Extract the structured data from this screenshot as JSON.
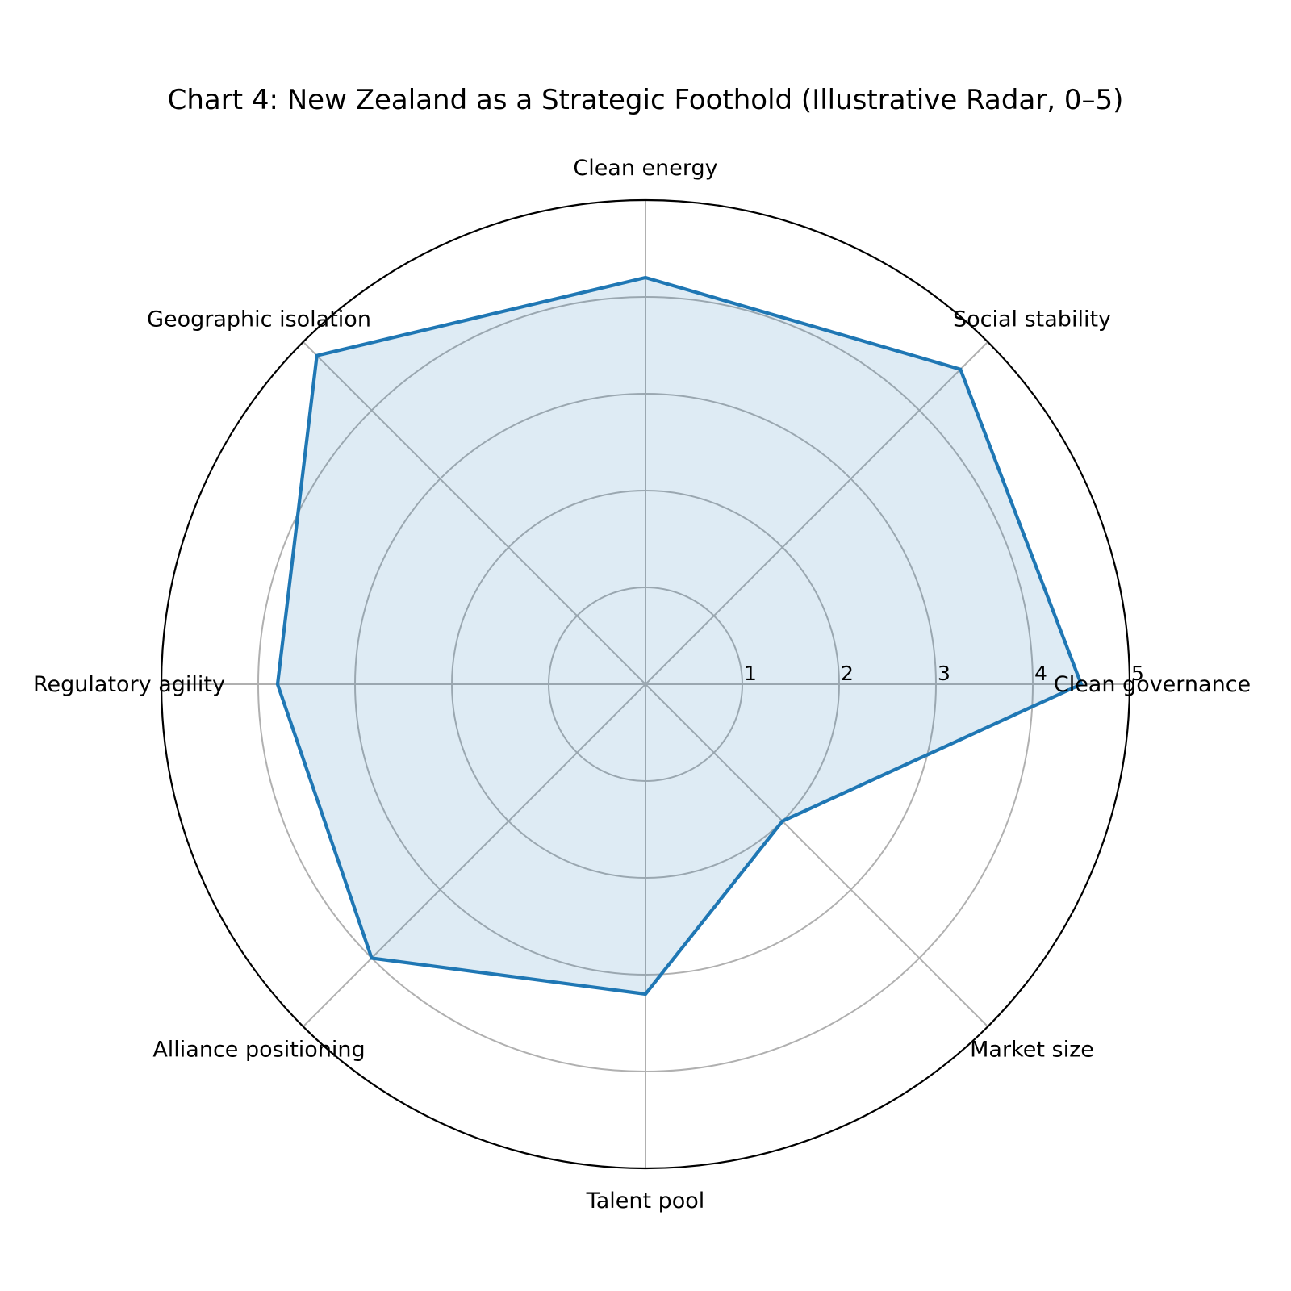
{
  "chart_data": {
    "type": "radar",
    "title": "Chart 4: New Zealand as a Strategic Foothold (Illustrative Radar, 0–5)",
    "categories": [
      "Clean governance",
      "Social stability",
      "Clean energy",
      "Geographic isolation",
      "Regulatory agility",
      "Alliance positioning",
      "Talent pool",
      "Market size"
    ],
    "series": [
      {
        "values": [
          4.5,
          4.6,
          4.2,
          4.8,
          3.8,
          4.0,
          3.2,
          2.0
        ]
      }
    ],
    "rlim": [
      0,
      5
    ],
    "r_ticks": [
      "1",
      "2",
      "3",
      "4",
      "5"
    ],
    "grid": true,
    "colors": {
      "line": "#1f77b4",
      "fill": "#1f77b4",
      "grid": "#b0b0b0",
      "frame": "#000000"
    }
  }
}
